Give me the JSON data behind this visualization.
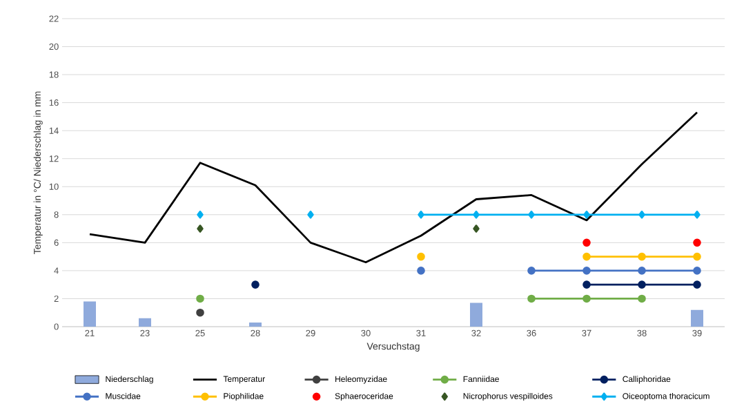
{
  "chart_data": {
    "type": "line",
    "xlabel": "Versuchstag",
    "ylabel": "Temperatur in °C/ Niederschlag in mm",
    "categories": [
      "21",
      "23",
      "25",
      "28",
      "29",
      "30",
      "31",
      "32",
      "36",
      "37",
      "38",
      "39"
    ],
    "ylim": [
      0,
      22
    ],
    "yticks": [
      0,
      2,
      4,
      6,
      8,
      10,
      12,
      14,
      16,
      18,
      20,
      22
    ],
    "grid": "y",
    "legend": "bottom",
    "series": [
      {
        "name": "Niederschlag",
        "type": "bar",
        "color": "#8faadc",
        "values": [
          1.8,
          0.6,
          null,
          0.3,
          null,
          null,
          null,
          1.7,
          null,
          null,
          null,
          1.2
        ]
      },
      {
        "name": "Temperatur",
        "color": "#000000",
        "marker": "none",
        "values": [
          6.6,
          6.0,
          11.7,
          10.1,
          6.0,
          4.6,
          6.5,
          9.1,
          9.4,
          7.6,
          11.6,
          15.3
        ]
      },
      {
        "name": "Heleomyzidae",
        "color": "#404040",
        "marker": "circle",
        "values": [
          null,
          null,
          1,
          null,
          null,
          null,
          null,
          null,
          null,
          null,
          null,
          null
        ]
      },
      {
        "name": "Fanniidae",
        "color": "#70ad47",
        "marker": "circle",
        "values": [
          null,
          null,
          2,
          null,
          null,
          null,
          null,
          null,
          2,
          2,
          2,
          null
        ]
      },
      {
        "name": "Calliphoridae",
        "color": "#002060",
        "marker": "circle",
        "values": [
          null,
          null,
          null,
          3,
          null,
          null,
          null,
          null,
          null,
          3,
          3,
          3
        ]
      },
      {
        "name": "Muscidae",
        "color": "#4472c4",
        "marker": "circle",
        "values": [
          null,
          null,
          null,
          null,
          null,
          null,
          4,
          null,
          4,
          4,
          4,
          4
        ]
      },
      {
        "name": "Piophilidae",
        "color": "#ffc000",
        "marker": "circle",
        "values": [
          null,
          null,
          null,
          null,
          null,
          null,
          5,
          null,
          null,
          5,
          5,
          5
        ]
      },
      {
        "name": "Sphaeroceridae",
        "type": "scatter",
        "color": "#ff0000",
        "marker": "circle",
        "values": [
          null,
          null,
          null,
          null,
          null,
          null,
          null,
          null,
          null,
          6,
          null,
          6
        ]
      },
      {
        "name": "Nicrophorus vespilloides",
        "type": "scatter",
        "color": "#375623",
        "marker": "diamond",
        "values": [
          null,
          null,
          7,
          null,
          null,
          null,
          null,
          7,
          null,
          null,
          null,
          null
        ]
      },
      {
        "name": "Oiceoptoma thoracicum",
        "color": "#00b0f0",
        "marker": "diamond",
        "values": [
          null,
          null,
          8,
          null,
          8,
          null,
          8,
          8,
          8,
          8,
          8,
          8
        ]
      }
    ]
  }
}
